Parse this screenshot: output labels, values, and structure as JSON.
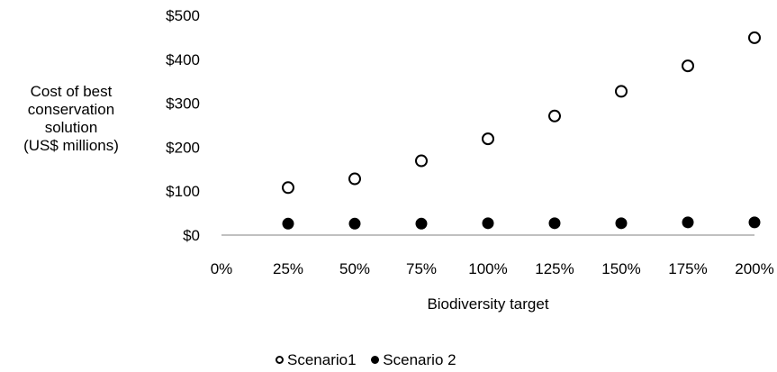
{
  "chart_data": {
    "type": "scatter",
    "title": "",
    "ylabel": "Cost of best\nconservation\nsolution\n(US$ millions)",
    "xlabel": "Biodiversity target",
    "x_tick_labels": [
      "0%",
      "25%",
      "50%",
      "75%",
      "100%",
      "125%",
      "150%",
      "175%",
      "200%"
    ],
    "y_tick_labels": [
      "$0",
      "$100",
      "$200",
      "$300",
      "$400",
      "$500"
    ],
    "x": [
      25,
      50,
      75,
      100,
      125,
      150,
      175,
      200
    ],
    "xlim": [
      0,
      200
    ],
    "ylim": [
      0,
      500
    ],
    "grid": false,
    "legend_position": "bottom",
    "series": [
      {
        "name": "Scenario1",
        "marker": "open-circle",
        "color": "#000000",
        "values": [
          108,
          128,
          169,
          219,
          271,
          327,
          385,
          449
        ]
      },
      {
        "name": "Scenario 2",
        "marker": "filled-circle",
        "color": "#000000",
        "values": [
          26,
          26,
          26,
          27,
          27,
          27,
          29,
          29
        ]
      }
    ]
  }
}
